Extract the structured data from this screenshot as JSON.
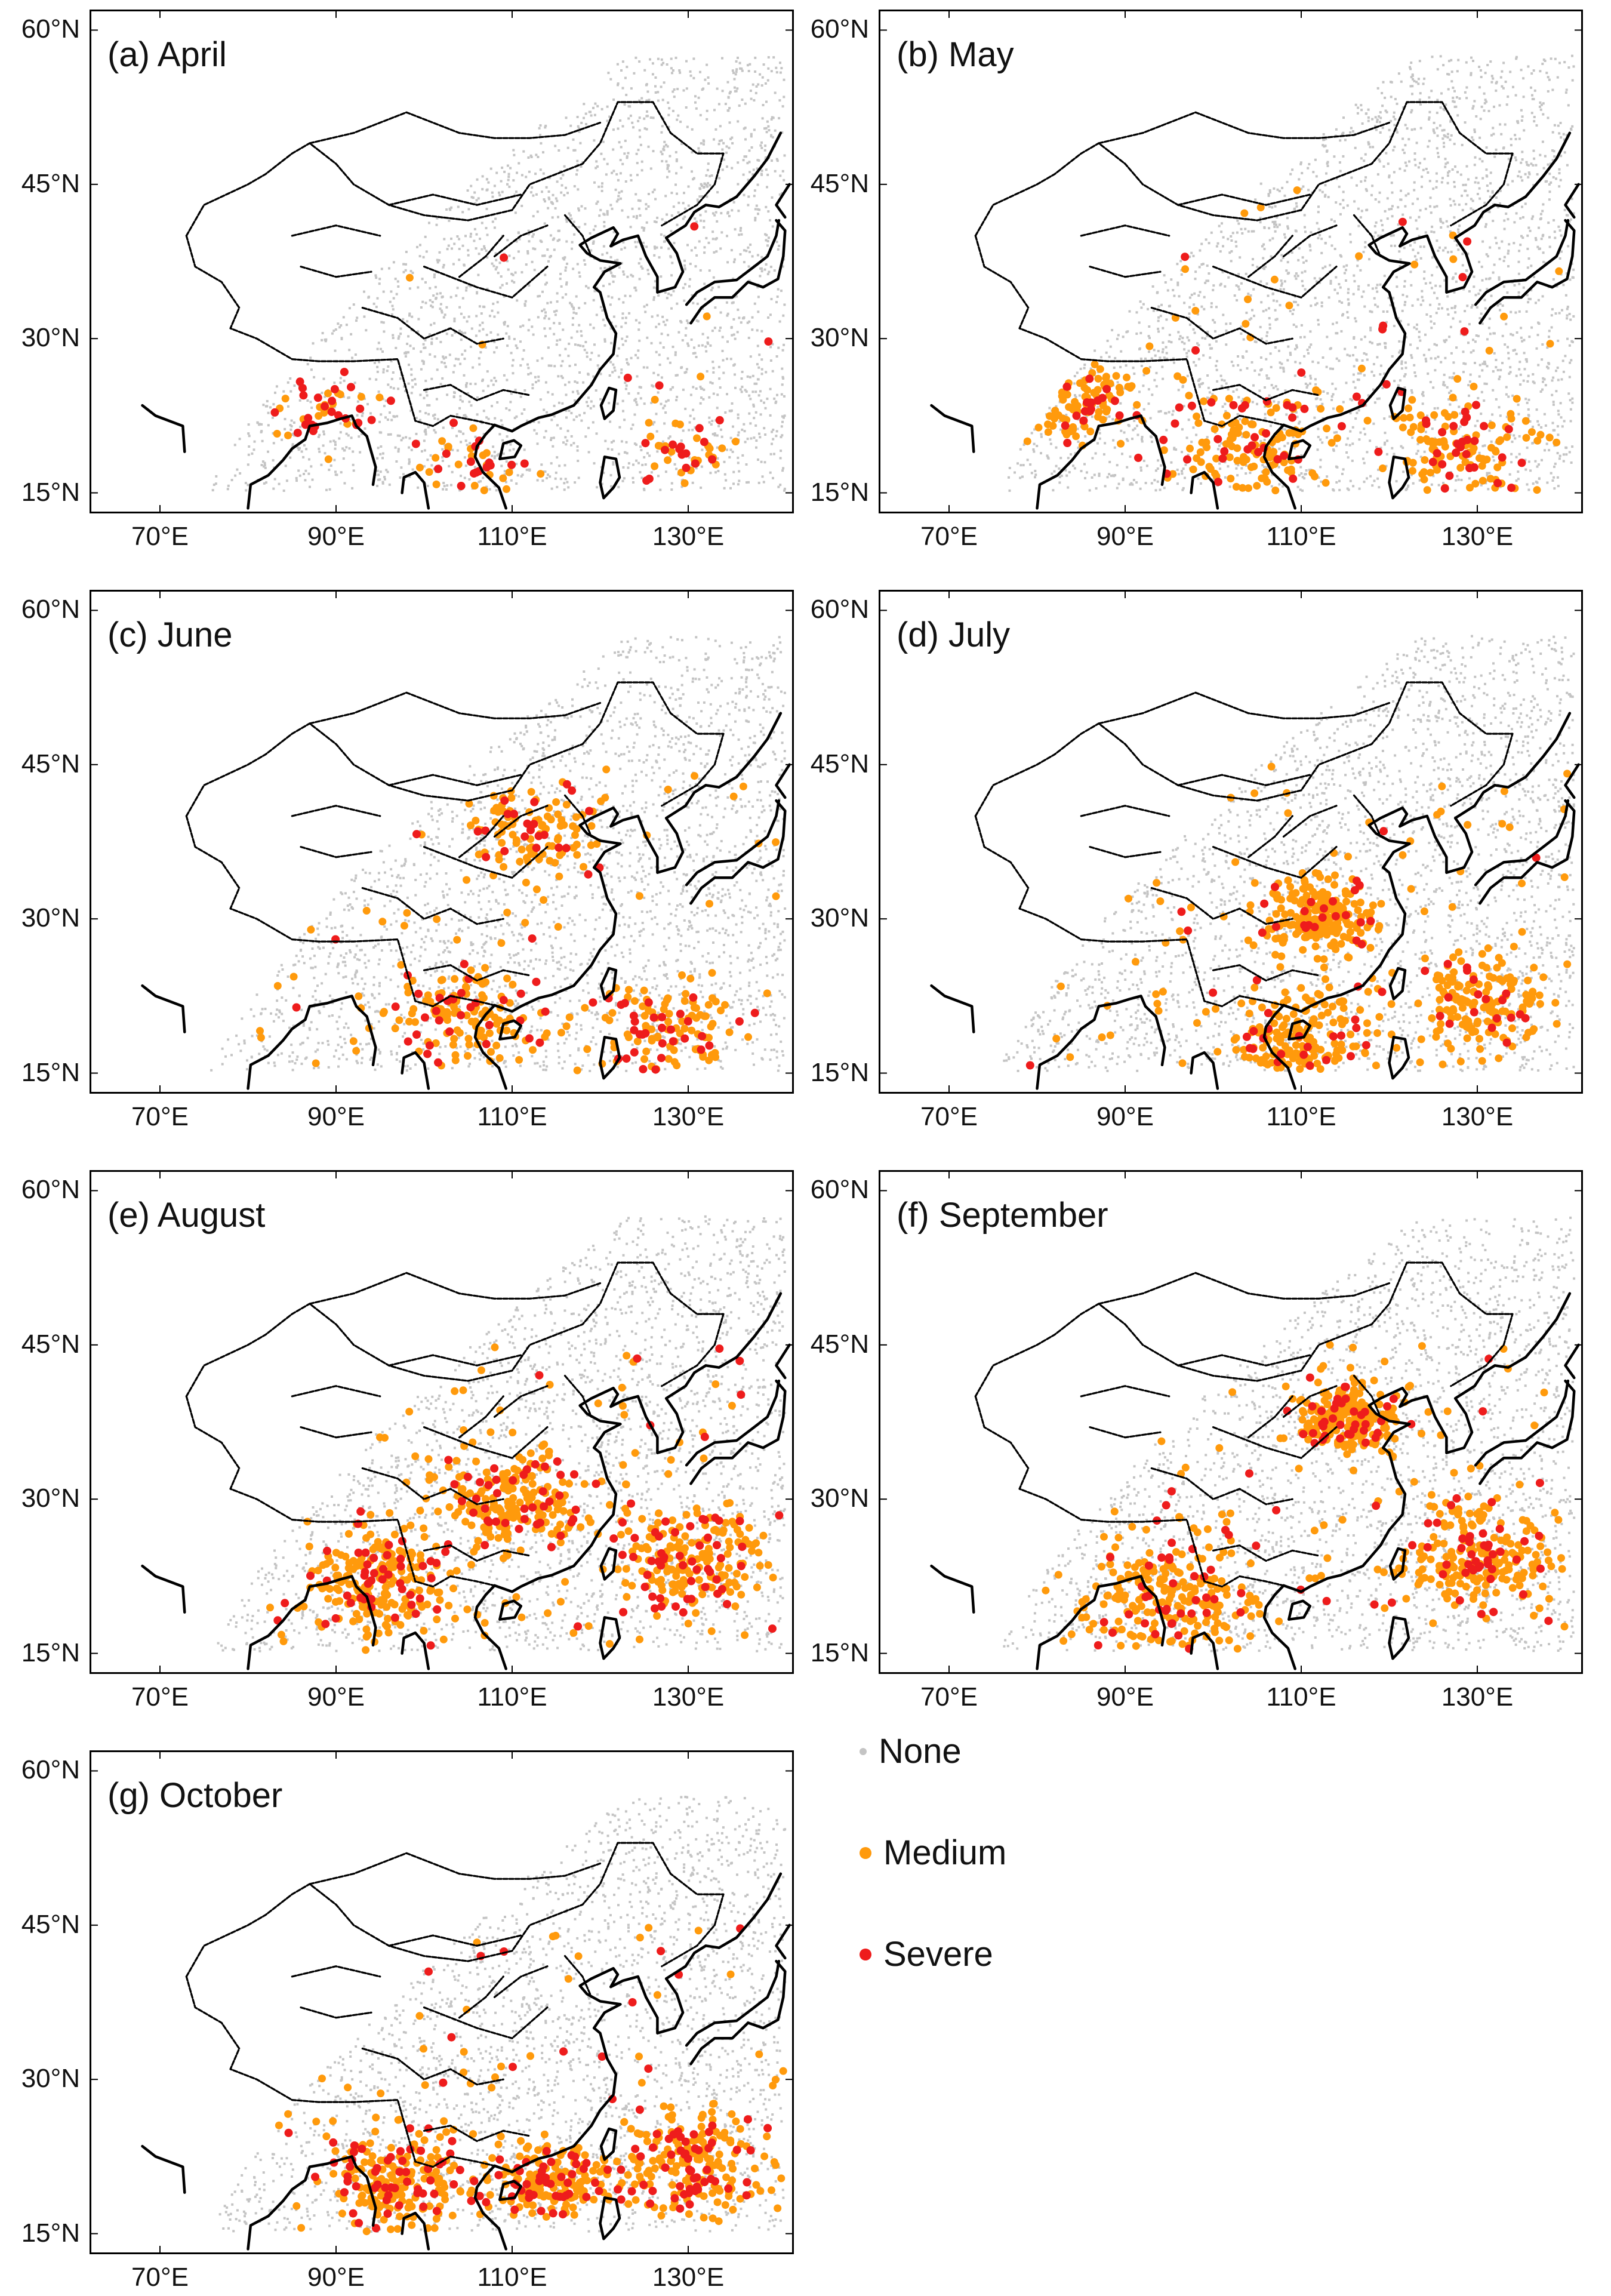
{
  "figure": {
    "lon_range": [
      62,
      142
    ],
    "lat_range": [
      13,
      62
    ],
    "lat_ticks": [
      "60°N",
      "45°N",
      "30°N",
      "15°N"
    ],
    "lat_tick_values": [
      60,
      45,
      30,
      15
    ],
    "lon_ticks": [
      "70°E",
      "90°E",
      "110°E",
      "130°E"
    ],
    "lon_tick_values": [
      70,
      90,
      110,
      130
    ],
    "colors": {
      "none": "#c4c4c4",
      "medium": "#ff9a0c",
      "severe": "#ee1c1c",
      "border": "#000000"
    }
  },
  "legend": {
    "none_label": "None",
    "medium_label": "Medium",
    "severe_label": "Severe"
  },
  "chart_data": {
    "type": "scatter",
    "description_units": "lon/lat degrees; category counts per panel",
    "panels": [
      {
        "id": "a",
        "title": "(a) April",
        "month": "April",
        "medium": 70,
        "severe": 60,
        "hotspots": [
          {
            "lon": 88,
            "lat": 23,
            "spread": 6
          },
          {
            "lon": 105,
            "lat": 18,
            "spread": 6
          },
          {
            "lon": 130,
            "lat": 19,
            "spread": 5
          }
        ]
      },
      {
        "id": "b",
        "title": "(b) May",
        "month": "May",
        "medium": 320,
        "severe": 90,
        "hotspots": [
          {
            "lon": 85,
            "lat": 24,
            "spread": 6
          },
          {
            "lon": 105,
            "lat": 20,
            "spread": 8
          },
          {
            "lon": 128,
            "lat": 19,
            "spread": 8
          }
        ]
      },
      {
        "id": "c",
        "title": "(c) June",
        "month": "June",
        "medium": 340,
        "severe": 90,
        "hotspots": [
          {
            "lon": 128,
            "lat": 19,
            "spread": 8
          },
          {
            "lon": 105,
            "lat": 20,
            "spread": 8
          },
          {
            "lon": 112,
            "lat": 38,
            "spread": 7
          }
        ]
      },
      {
        "id": "d",
        "title": "(d) July",
        "month": "July",
        "medium": 560,
        "severe": 70,
        "hotspots": [
          {
            "lon": 130,
            "lat": 22,
            "spread": 8
          },
          {
            "lon": 112,
            "lat": 30,
            "spread": 6
          },
          {
            "lon": 110,
            "lat": 18,
            "spread": 7
          }
        ]
      },
      {
        "id": "e",
        "title": "(e) August",
        "month": "August",
        "medium": 600,
        "severe": 150,
        "hotspots": [
          {
            "lon": 130,
            "lat": 24,
            "spread": 8
          },
          {
            "lon": 110,
            "lat": 30,
            "spread": 8
          },
          {
            "lon": 95,
            "lat": 22,
            "spread": 8
          }
        ]
      },
      {
        "id": "f",
        "title": "(f) September",
        "month": "September",
        "medium": 640,
        "severe": 130,
        "hotspots": [
          {
            "lon": 130,
            "lat": 24,
            "spread": 8
          },
          {
            "lon": 95,
            "lat": 21,
            "spread": 9
          },
          {
            "lon": 115,
            "lat": 38,
            "spread": 5
          }
        ]
      },
      {
        "id": "g",
        "title": "(g) October",
        "month": "October",
        "medium": 520,
        "severe": 170,
        "hotspots": [
          {
            "lon": 97,
            "lat": 20,
            "spread": 8
          },
          {
            "lon": 130,
            "lat": 22,
            "spread": 8
          },
          {
            "lon": 115,
            "lat": 20,
            "spread": 6
          }
        ]
      }
    ],
    "legend_entries": [
      "None",
      "Medium",
      "Severe"
    ]
  }
}
